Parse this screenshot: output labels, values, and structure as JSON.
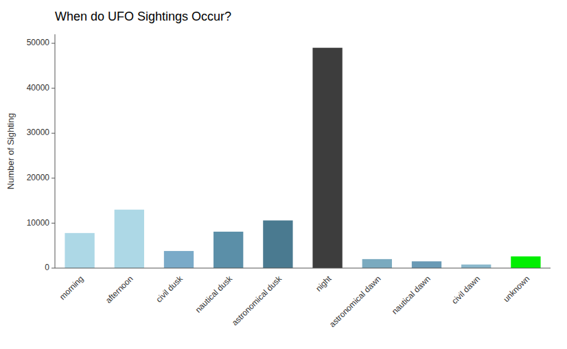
{
  "chart_data": {
    "type": "bar",
    "title": "When do UFO Sightings Occur?",
    "categories": [
      "morning",
      "afternoon",
      "civil dusk",
      "nautical dusk",
      "astronomical dusk",
      "night",
      "astronomical dawn",
      "nautical dawn",
      "civil dawn",
      "unknown"
    ],
    "values": [
      7800,
      13000,
      3800,
      8100,
      10600,
      49000,
      2000,
      1500,
      800,
      2600
    ],
    "colors": [
      "#ADD8E6",
      "#ADD8E6",
      "#7aaac8",
      "#5b8fa8",
      "#4a7a90",
      "#3d3d3d",
      "#7aaabf",
      "#6a9ab5",
      "#8ab8cc",
      "#00ee00"
    ],
    "ylabel": "Number of Sighting",
    "ylim": [
      0,
      52000
    ],
    "yticks": [
      0,
      10000,
      20000,
      30000,
      40000,
      50000
    ],
    "grid": false
  }
}
